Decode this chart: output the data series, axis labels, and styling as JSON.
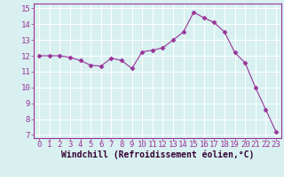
{
  "x": [
    0,
    1,
    2,
    3,
    4,
    5,
    6,
    7,
    8,
    9,
    10,
    11,
    12,
    13,
    14,
    15,
    16,
    17,
    18,
    19,
    20,
    21,
    22,
    23
  ],
  "y": [
    12.0,
    12.0,
    12.0,
    11.9,
    11.7,
    11.4,
    11.35,
    11.85,
    11.7,
    11.2,
    12.25,
    12.35,
    12.5,
    13.0,
    13.5,
    14.75,
    14.4,
    14.1,
    13.5,
    12.2,
    11.55,
    10.0,
    8.6,
    7.2
  ],
  "line_color": "#993399",
  "marker": "D",
  "marker_size": 2.5,
  "bg_color": "#d8f0f0",
  "grid_color": "#ffffff",
  "xlabel": "Windchill (Refroidissement éolien,°C)",
  "xlim": [
    -0.5,
    23.5
  ],
  "ylim": [
    6.8,
    15.3
  ],
  "yticks": [
    7,
    8,
    9,
    10,
    11,
    12,
    13,
    14,
    15
  ],
  "xticks": [
    0,
    1,
    2,
    3,
    4,
    5,
    6,
    7,
    8,
    9,
    10,
    11,
    12,
    13,
    14,
    15,
    16,
    17,
    18,
    19,
    20,
    21,
    22,
    23
  ],
  "tick_fontsize": 6.5,
  "xlabel_fontsize": 7.0,
  "tick_color": "#993399",
  "spine_color": "#993399",
  "xlabel_color": "#330033"
}
